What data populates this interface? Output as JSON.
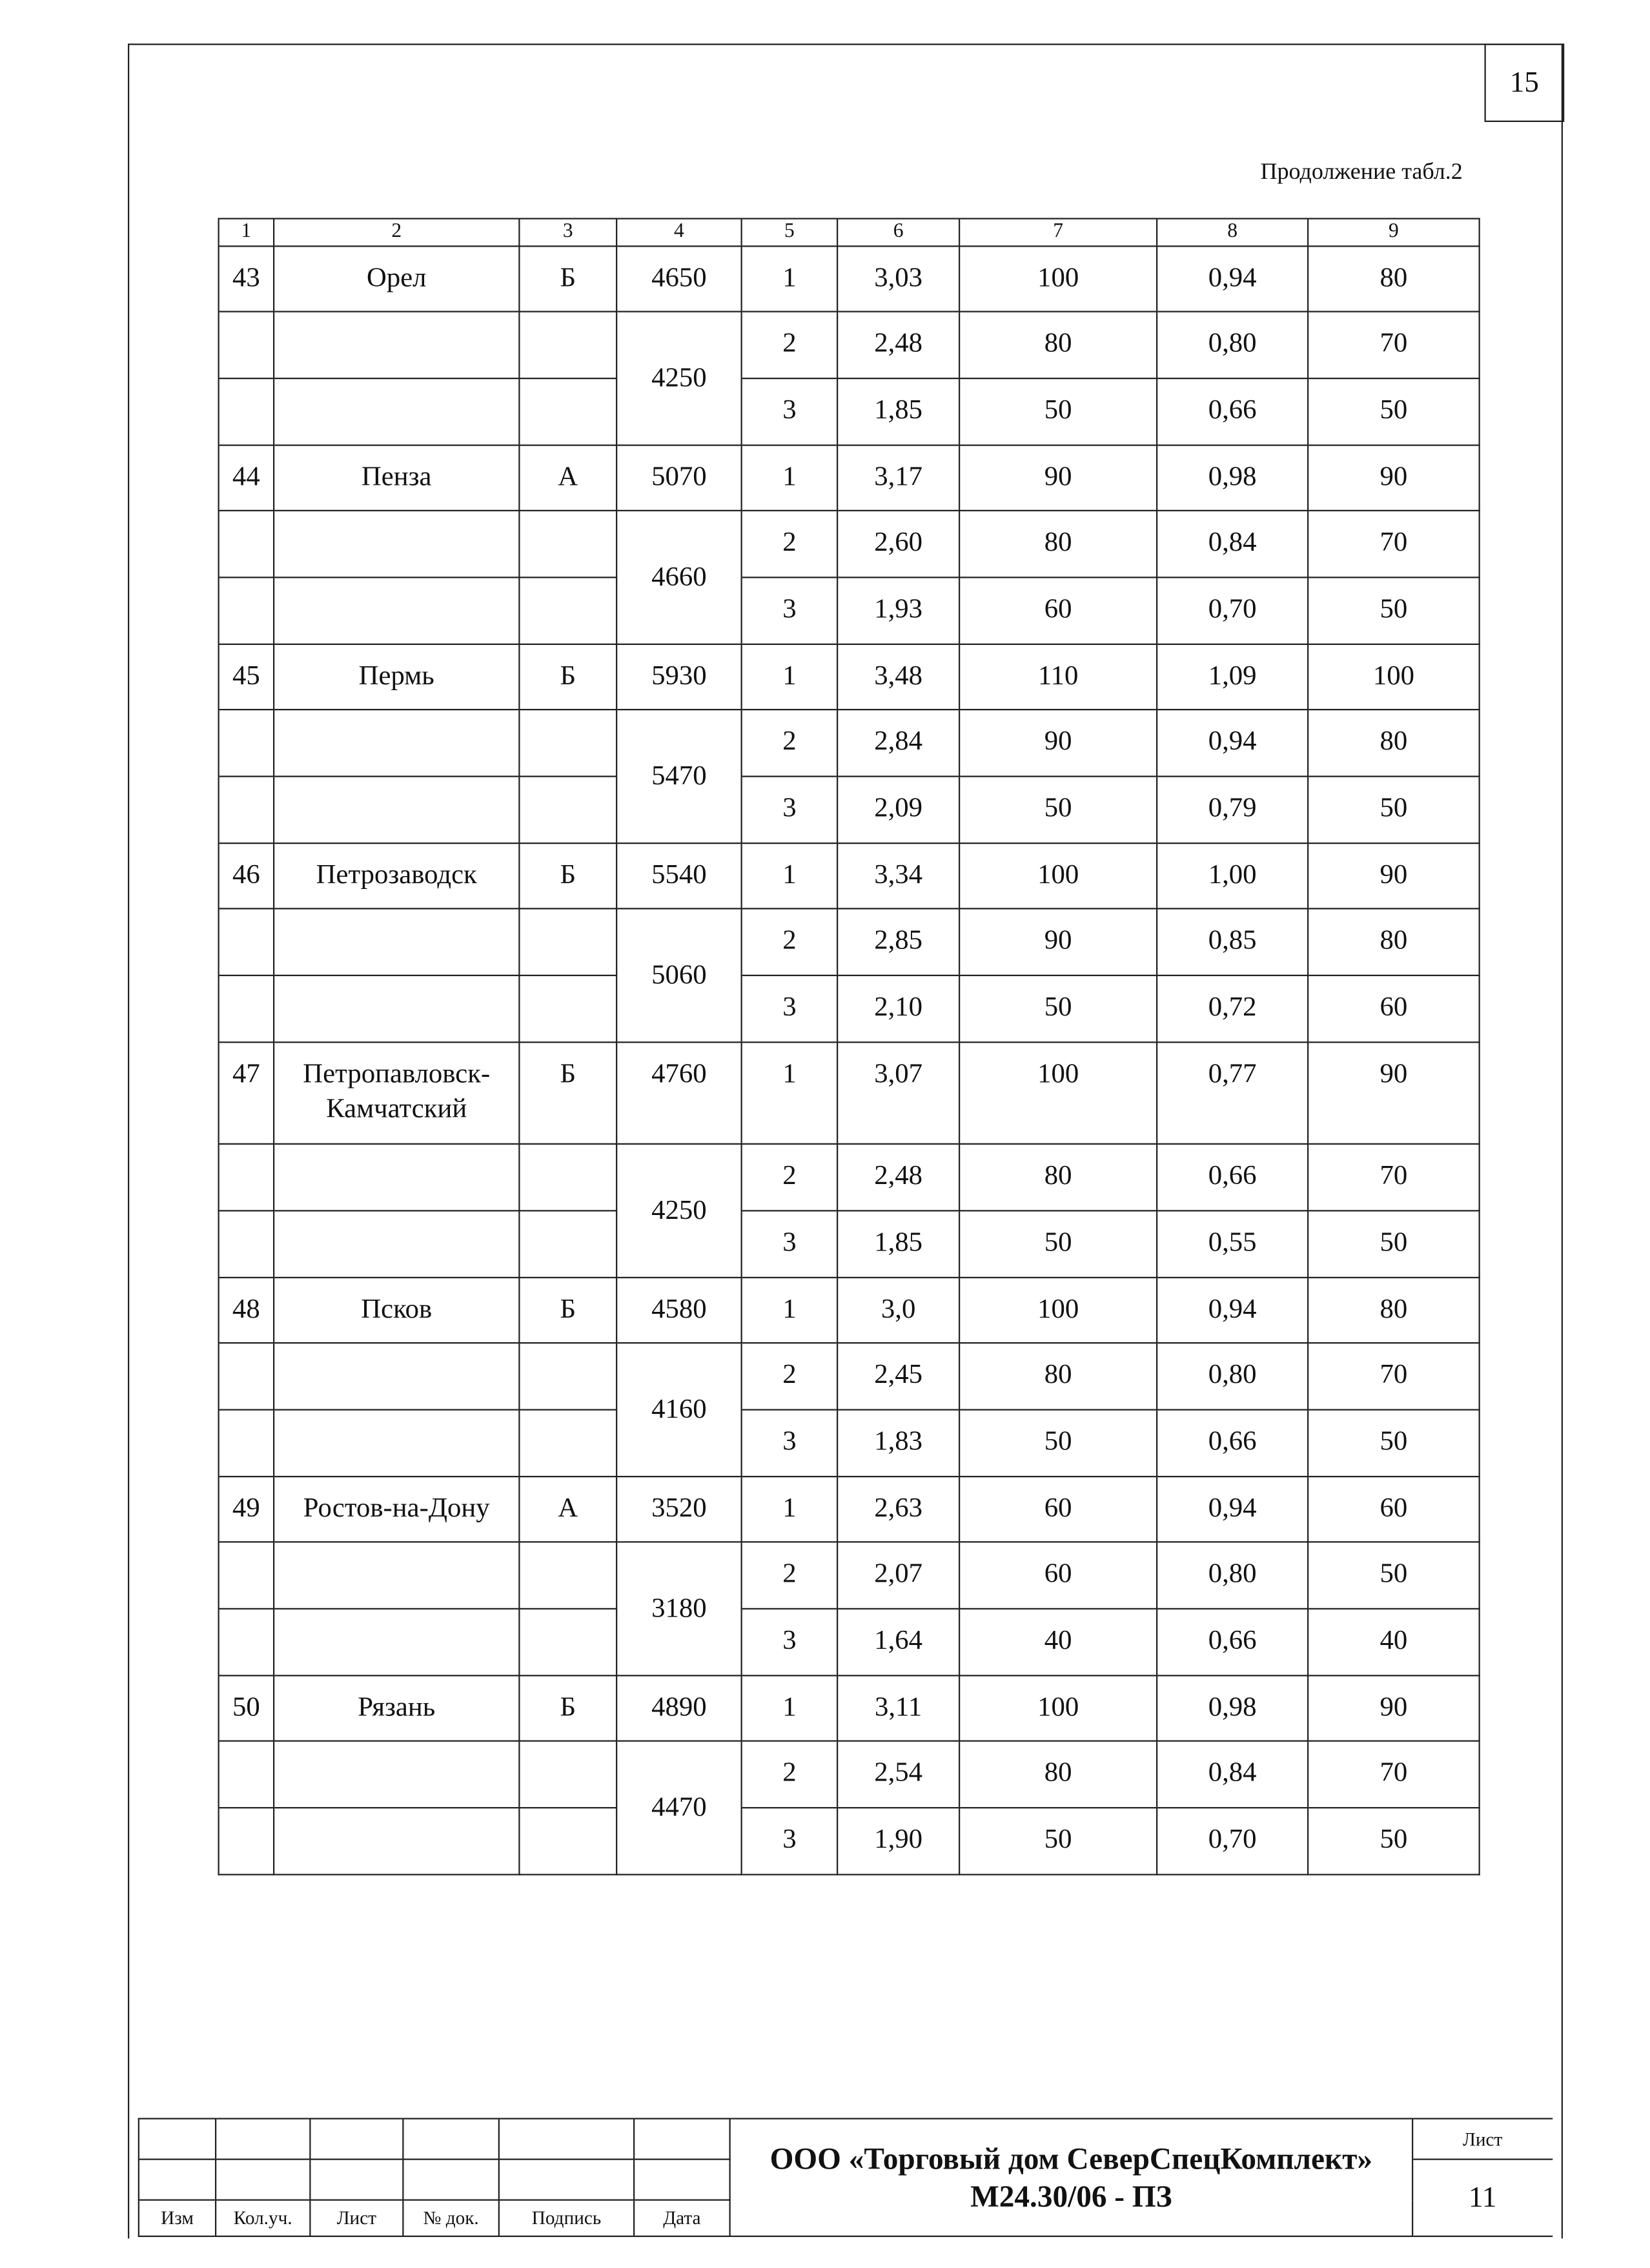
{
  "page_number": "15",
  "continuation_label": "Продолжение табл.2",
  "table": {
    "headers": [
      "1",
      "2",
      "3",
      "4",
      "5",
      "6",
      "7",
      "8",
      "9"
    ],
    "groups": [
      {
        "no": "43",
        "city": "Орел",
        "zone": "Б",
        "rows": [
          {
            "c4": "4650",
            "c5": "1",
            "c6": "3,03",
            "c7": "100",
            "c8": "0,94",
            "c9": "80"
          }
        ],
        "c4_merged": "4250",
        "sub": [
          {
            "c5": "2",
            "c6": "2,48",
            "c7": "80",
            "c8": "0,80",
            "c9": "70"
          },
          {
            "c5": "3",
            "c6": "1,85",
            "c7": "50",
            "c8": "0,66",
            "c9": "50"
          }
        ]
      },
      {
        "no": "44",
        "city": "Пенза",
        "zone": "А",
        "rows": [
          {
            "c4": "5070",
            "c5": "1",
            "c6": "3,17",
            "c7": "90",
            "c8": "0,98",
            "c9": "90"
          }
        ],
        "c4_merged": "4660",
        "sub": [
          {
            "c5": "2",
            "c6": "2,60",
            "c7": "80",
            "c8": "0,84",
            "c9": "70"
          },
          {
            "c5": "3",
            "c6": "1,93",
            "c7": "60",
            "c8": "0,70",
            "c9": "50"
          }
        ]
      },
      {
        "no": "45",
        "city": "Пермь",
        "zone": "Б",
        "rows": [
          {
            "c4": "5930",
            "c5": "1",
            "c6": "3,48",
            "c7": "110",
            "c8": "1,09",
            "c9": "100"
          }
        ],
        "c4_merged": "5470",
        "sub": [
          {
            "c5": "2",
            "c6": "2,84",
            "c7": "90",
            "c8": "0,94",
            "c9": "80"
          },
          {
            "c5": "3",
            "c6": "2,09",
            "c7": "50",
            "c8": "0,79",
            "c9": "50"
          }
        ]
      },
      {
        "no": "46",
        "city": "Петрозаводск",
        "zone": "Б",
        "rows": [
          {
            "c4": "5540",
            "c5": "1",
            "c6": "3,34",
            "c7": "100",
            "c8": "1,00",
            "c9": "90"
          }
        ],
        "c4_merged": "5060",
        "sub": [
          {
            "c5": "2",
            "c6": "2,85",
            "c7": "90",
            "c8": "0,85",
            "c9": "80"
          },
          {
            "c5": "3",
            "c6": "2,10",
            "c7": "50",
            "c8": "0,72",
            "c9": "60"
          }
        ]
      },
      {
        "no": "47",
        "city": "Петропавловск-Камчатский",
        "zone": "Б",
        "rows": [
          {
            "c4": "4760",
            "c5": "1",
            "c6": "3,07",
            "c7": "100",
            "c8": "0,77",
            "c9": "90"
          }
        ],
        "c4_merged": "4250",
        "sub": [
          {
            "c5": "2",
            "c6": "2,48",
            "c7": "80",
            "c8": "0,66",
            "c9": "70"
          },
          {
            "c5": "3",
            "c6": "1,85",
            "c7": "50",
            "c8": "0,55",
            "c9": "50"
          }
        ]
      },
      {
        "no": "48",
        "city": "Псков",
        "zone": "Б",
        "rows": [
          {
            "c4": "4580",
            "c5": "1",
            "c6": "3,0",
            "c7": "100",
            "c8": "0,94",
            "c9": "80"
          }
        ],
        "c4_merged": "4160",
        "sub": [
          {
            "c5": "2",
            "c6": "2,45",
            "c7": "80",
            "c8": "0,80",
            "c9": "70"
          },
          {
            "c5": "3",
            "c6": "1,83",
            "c7": "50",
            "c8": "0,66",
            "c9": "50"
          }
        ]
      },
      {
        "no": "49",
        "city": "Ростов-на-Дону",
        "zone": "А",
        "rows": [
          {
            "c4": "3520",
            "c5": "1",
            "c6": "2,63",
            "c7": "60",
            "c8": "0,94",
            "c9": "60"
          }
        ],
        "c4_merged": "3180",
        "sub": [
          {
            "c5": "2",
            "c6": "2,07",
            "c7": "60",
            "c8": "0,80",
            "c9": "50"
          },
          {
            "c5": "3",
            "c6": "1,64",
            "c7": "40",
            "c8": "0,66",
            "c9": "40"
          }
        ]
      },
      {
        "no": "50",
        "city": "Рязань",
        "zone": "Б",
        "rows": [
          {
            "c4": "4890",
            "c5": "1",
            "c6": "3,11",
            "c7": "100",
            "c8": "0,98",
            "c9": "90"
          }
        ],
        "c4_merged": "4470",
        "sub": [
          {
            "c5": "2",
            "c6": "2,54",
            "c7": "80",
            "c8": "0,84",
            "c9": "70"
          },
          {
            "c5": "3",
            "c6": "1,90",
            "c7": "50",
            "c8": "0,70",
            "c9": "50"
          }
        ]
      }
    ]
  },
  "stamp": {
    "labels": [
      "Изм",
      "Кол.уч.",
      "Лист",
      "№ док.",
      "Подпись",
      "Дата"
    ],
    "company": "ООО «Торговый дом СеверСпецКомплект»",
    "doc_code": "М24.30/06 - ПЗ",
    "sheet_label": "Лист",
    "sheet_number": "11"
  }
}
